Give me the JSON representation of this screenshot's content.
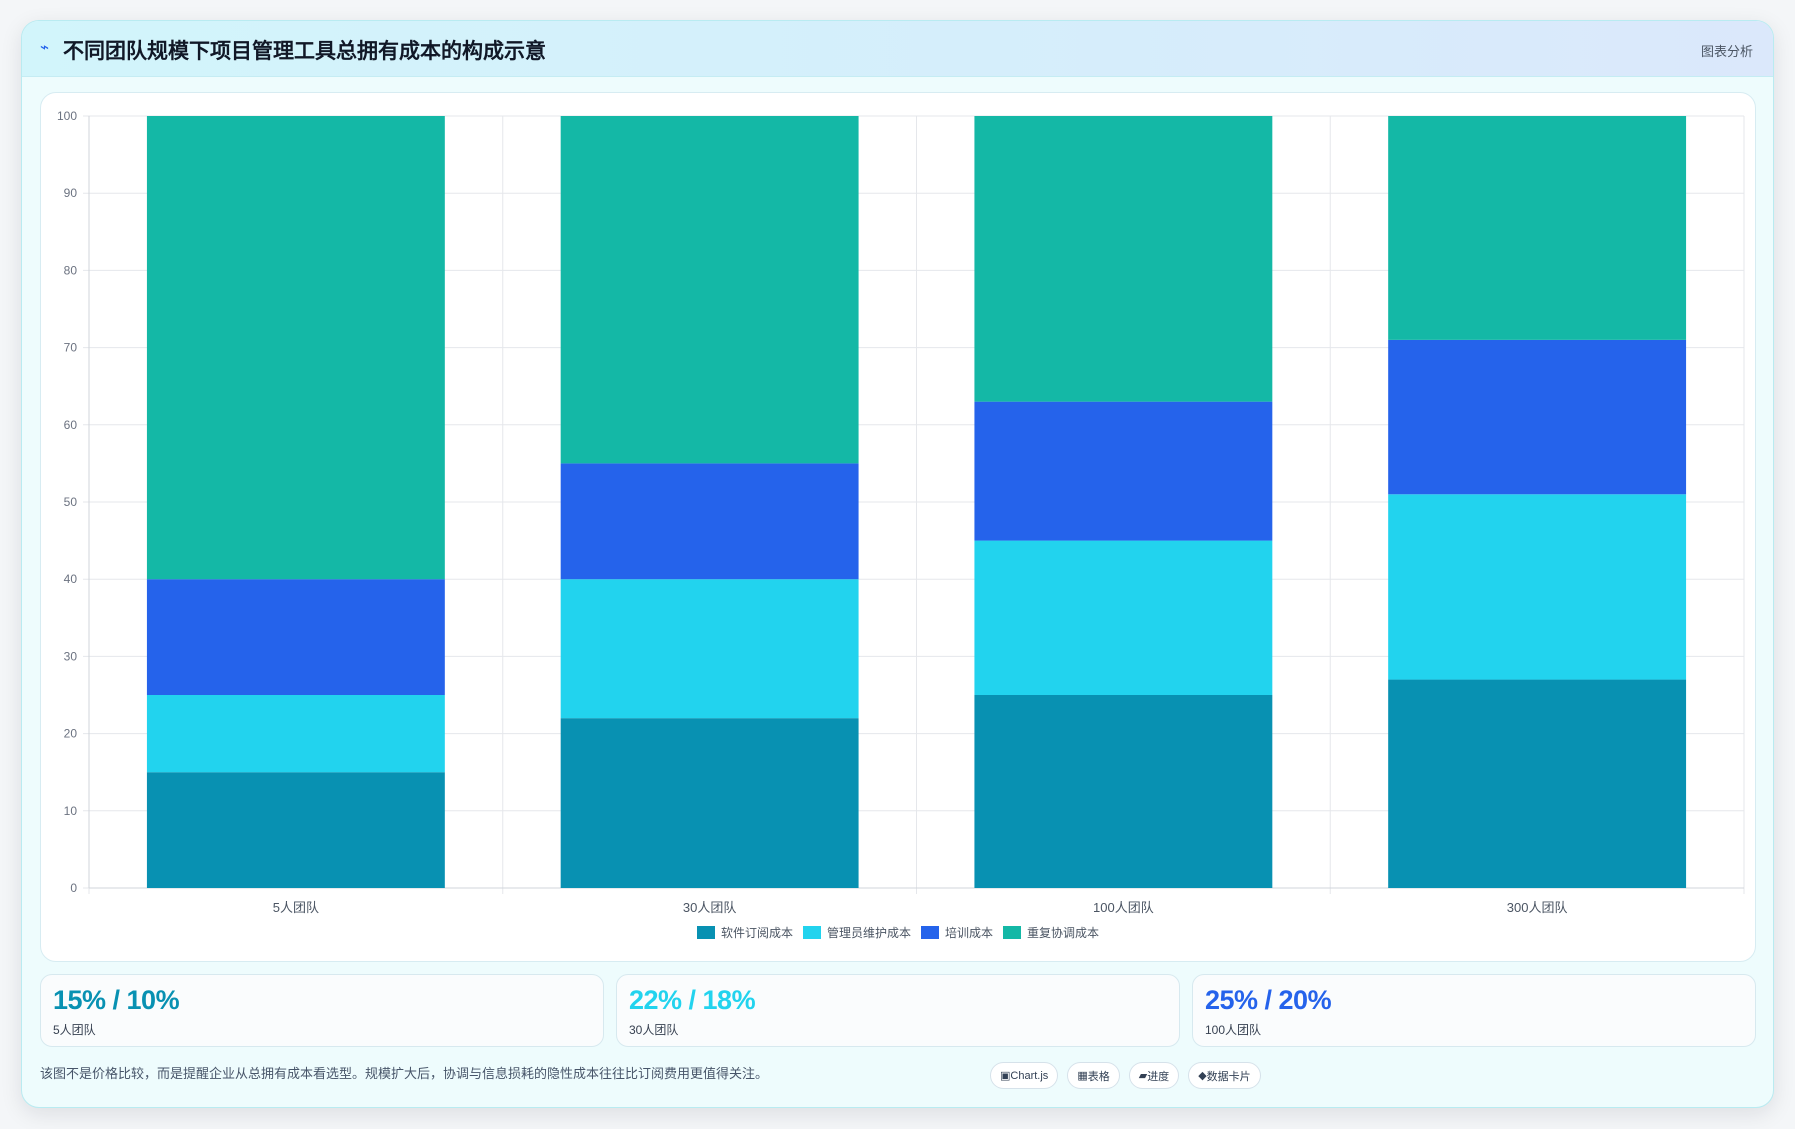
{
  "header": {
    "icon": "bolt-icon",
    "title": "不同团队规模下项目管理工具总拥有成本的构成示意",
    "tag": "图表分析"
  },
  "chart_data": {
    "type": "bar",
    "stacked": true,
    "categories": [
      "5人团队",
      "30人团队",
      "100人团队",
      "300人团队"
    ],
    "series": [
      {
        "name": "软件订阅成本",
        "color": "#0891b2",
        "values": [
          15,
          22,
          25,
          27
        ]
      },
      {
        "name": "管理员维护成本",
        "color": "#22d3ee",
        "values": [
          10,
          18,
          20,
          24
        ]
      },
      {
        "name": "培训成本",
        "color": "#2563eb",
        "values": [
          15,
          15,
          18,
          20
        ]
      },
      {
        "name": "重复协调成本",
        "color": "#14b8a6",
        "values": [
          60,
          45,
          37,
          29
        ]
      }
    ],
    "ylim": [
      0,
      100
    ],
    "yticks": [
      0,
      10,
      20,
      30,
      40,
      50,
      60,
      70,
      80,
      90,
      100
    ],
    "grid": true,
    "legend_position": "bottom",
    "title": "",
    "xlabel": "",
    "ylabel": ""
  },
  "stats": [
    {
      "value": "15% / 10%",
      "label": "5人团队",
      "color": "#0891b2"
    },
    {
      "value": "22% / 18%",
      "label": "30人团队",
      "color": "#22d3ee"
    },
    {
      "value": "25% / 20%",
      "label": "100人团队",
      "color": "#2563eb"
    }
  ],
  "footnote": "该图不是价格比较，而是提醒企业从总拥有成本看选型。规模扩大后，协调与信息损耗的隐性成本往往比订阅费用更值得关注。",
  "chips": [
    {
      "icon": "chart-icon",
      "glyph": "▣",
      "label": "Chart.js"
    },
    {
      "icon": "table-icon",
      "glyph": "▦",
      "label": "表格"
    },
    {
      "icon": "progress-icon",
      "glyph": "▰",
      "label": "进度"
    },
    {
      "icon": "data-card-icon",
      "glyph": "◆",
      "label": "数据卡片"
    }
  ]
}
